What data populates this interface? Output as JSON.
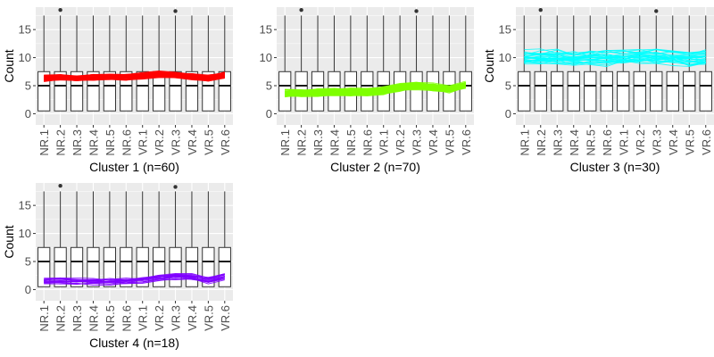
{
  "figure": {
    "panel_background": "#ebebeb",
    "grid_color": "#ffffff",
    "box_fill": "#ffffff",
    "box_stroke": "#333333"
  },
  "chart_data": [
    {
      "type": "box",
      "title": "",
      "xlabel": "Cluster 1 (n=60)",
      "ylabel": "Count",
      "categories": [
        "NR.1",
        "NR.2",
        "NR.3",
        "NR.4",
        "NR.5",
        "NR.6",
        "VR.1",
        "VR.2",
        "VR.3",
        "VR.4",
        "VR.5",
        "VR.6"
      ],
      "yticks": [
        0,
        5,
        10,
        15
      ],
      "ylim": [
        -2,
        19
      ],
      "grid": true,
      "boxes": {
        "q1": 0.5,
        "median": 5,
        "q3": 7.5,
        "whisker_low": 0.5,
        "whisker_high": 17.5
      },
      "outliers": [
        {
          "category": "NR.2",
          "value": 18.5
        },
        {
          "category": "VR.3",
          "value": 18.3
        }
      ],
      "series": [
        {
          "color": "#ff0000",
          "n_lines": 60,
          "mean": [
            6.3,
            6.4,
            6.3,
            6.4,
            6.5,
            6.5,
            6.7,
            7.0,
            6.8,
            6.6,
            6.3,
            6.9
          ],
          "spread": 0.9
        }
      ]
    },
    {
      "type": "box",
      "title": "",
      "xlabel": "Cluster 2 (n=70)",
      "ylabel": "",
      "categories": [
        "NR.1",
        "NR.2",
        "NR.3",
        "NR.4",
        "NR.5",
        "NR.6",
        "VR.1",
        "VR.2",
        "VR.3",
        "VR.4",
        "VR.5",
        "VR.6"
      ],
      "yticks": [
        0,
        5,
        10,
        15
      ],
      "ylim": [
        -2,
        19
      ],
      "grid": true,
      "boxes": {
        "q1": 0.5,
        "median": 5,
        "q3": 7.5,
        "whisker_low": 0.5,
        "whisker_high": 17.5
      },
      "outliers": [
        {
          "category": "NR.2",
          "value": 18.5
        },
        {
          "category": "VR.3",
          "value": 18.3
        }
      ],
      "series": [
        {
          "color": "#7fff00",
          "n_lines": 70,
          "mean": [
            3.7,
            3.7,
            3.8,
            3.8,
            3.9,
            3.9,
            4.1,
            4.7,
            5.0,
            4.8,
            4.4,
            5.2
          ],
          "spread": 1.1
        }
      ]
    },
    {
      "type": "box",
      "title": "",
      "xlabel": "Cluster 3 (n=30)",
      "ylabel": "Count",
      "categories": [
        "NR.1",
        "NR.2",
        "NR.3",
        "NR.4",
        "NR.5",
        "NR.6",
        "VR.1",
        "VR.2",
        "VR.3",
        "VR.4",
        "VR.5",
        "VR.6"
      ],
      "yticks": [
        0,
        5,
        10,
        15
      ],
      "ylim": [
        -2,
        19
      ],
      "grid": true,
      "boxes": {
        "q1": 0.5,
        "median": 5,
        "q3": 7.5,
        "whisker_low": 0.5,
        "whisker_high": 17.5
      },
      "outliers": [
        {
          "category": "NR.2",
          "value": 18.5
        },
        {
          "category": "VR.3",
          "value": 18.3
        }
      ],
      "series": [
        {
          "color": "#00ffff",
          "n_lines": 30,
          "mean": [
            10.0,
            10.0,
            10.1,
            10.0,
            10.0,
            10.0,
            10.1,
            10.3,
            10.2,
            10.1,
            9.8,
            10.0
          ],
          "spread": 2.3
        }
      ]
    },
    {
      "type": "box",
      "title": "",
      "xlabel": "Cluster 4 (n=18)",
      "ylabel": "Count",
      "categories": [
        "NR.1",
        "NR.2",
        "NR.3",
        "NR.4",
        "NR.5",
        "NR.6",
        "VR.1",
        "VR.2",
        "VR.3",
        "VR.4",
        "VR.5",
        "VR.6"
      ],
      "yticks": [
        0,
        5,
        10,
        15
      ],
      "ylim": [
        -2,
        19
      ],
      "grid": true,
      "boxes": {
        "q1": 0.5,
        "median": 5,
        "q3": 7.5,
        "whisker_low": 0.5,
        "whisker_high": 17.5
      },
      "outliers": [
        {
          "category": "NR.2",
          "value": 18.5
        },
        {
          "category": "VR.3",
          "value": 18.3
        }
      ],
      "series": [
        {
          "color": "#7f00ff",
          "n_lines": 18,
          "mean": [
            1.5,
            1.5,
            1.4,
            1.4,
            1.4,
            1.5,
            1.7,
            2.1,
            2.4,
            2.2,
            1.6,
            2.3
          ],
          "spread": 1.0
        }
      ]
    }
  ]
}
